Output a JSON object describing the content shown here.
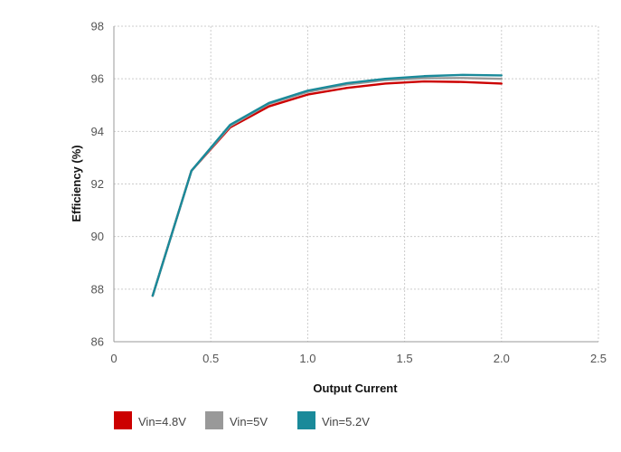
{
  "chart_data": {
    "type": "line",
    "xlabel": "Output Current",
    "ylabel": "Efficiency (%)",
    "xlim": [
      0,
      2.5
    ],
    "ylim": [
      86,
      98
    ],
    "x_ticks": [
      0,
      0.5,
      1.0,
      1.5,
      2.0,
      2.5
    ],
    "x_tick_labels": [
      "0",
      "0.5",
      "1.0",
      "1.5",
      "2.0",
      "2.5"
    ],
    "y_ticks": [
      86,
      88,
      90,
      92,
      94,
      96,
      98
    ],
    "y_tick_labels": [
      "86",
      "88",
      "90",
      "92",
      "94",
      "96",
      "98"
    ],
    "grid": true,
    "legend_position": "bottom-left",
    "x": [
      0.2,
      0.4,
      0.6,
      0.8,
      1.0,
      1.2,
      1.4,
      1.6,
      1.8,
      2.0
    ],
    "series": [
      {
        "name": "Vin=4.8V",
        "color": "#cc0000",
        "values": [
          87.75,
          92.5,
          94.15,
          94.95,
          95.4,
          95.65,
          95.82,
          95.9,
          95.88,
          95.82
        ]
      },
      {
        "name": "Vin=5V",
        "color": "#999999",
        "values": [
          87.75,
          92.5,
          94.2,
          95.05,
          95.5,
          95.78,
          95.95,
          96.02,
          96.03,
          96.0
        ]
      },
      {
        "name": "Vin=5.2V",
        "color": "#1a8a9a",
        "values": [
          87.75,
          92.5,
          94.25,
          95.08,
          95.55,
          95.83,
          96.0,
          96.1,
          96.15,
          96.13
        ]
      }
    ]
  }
}
